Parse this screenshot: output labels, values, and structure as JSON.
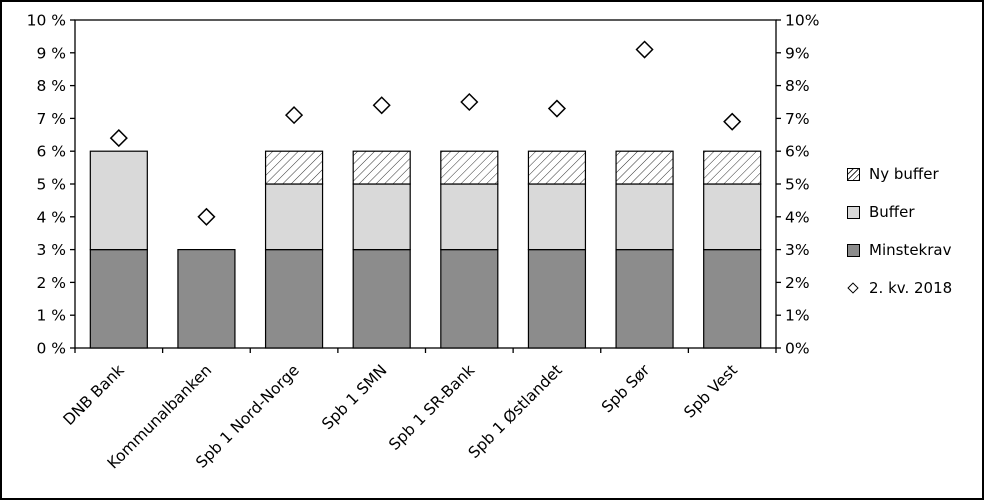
{
  "chart_data": {
    "type": "bar",
    "stacked": true,
    "title": "",
    "categories": [
      "DNB Bank",
      "Kommunalbanken",
      "Spb 1 Nord-Norge",
      "Spb 1 SMN",
      "Spb 1 SR-Bank",
      "Spb 1 Østlandet",
      "Spb Sør",
      "Spb Vest"
    ],
    "series": [
      {
        "name": "Minstekrav",
        "type": "bar",
        "values": [
          3,
          3,
          3,
          3,
          3,
          3,
          3,
          3
        ],
        "fill": "minstekrav"
      },
      {
        "name": "Buffer",
        "type": "bar",
        "values": [
          3,
          0,
          2,
          2,
          2,
          2,
          2,
          2
        ],
        "fill": "buffer"
      },
      {
        "name": "Ny buffer",
        "type": "bar",
        "values": [
          0,
          0,
          1,
          1,
          1,
          1,
          1,
          1
        ],
        "fill": "hatch"
      },
      {
        "name": "2. kv. 2018",
        "type": "scatter",
        "marker": "diamond",
        "values": [
          6.4,
          4.0,
          7.1,
          7.4,
          7.5,
          7.3,
          9.1,
          6.9
        ]
      }
    ],
    "ylim": [
      0,
      10
    ],
    "yaxis_left_ticks": [
      "0 %",
      "1 %",
      "2 %",
      "3 %",
      "4 %",
      "5 %",
      "6 %",
      "7 %",
      "8 %",
      "9 %",
      "10 %"
    ],
    "yaxis_right_ticks": [
      "0%",
      "1%",
      "2%",
      "3%",
      "4%",
      "5%",
      "6%",
      "7%",
      "8%",
      "9%",
      "10%"
    ],
    "legend": [
      "Ny buffer",
      "Buffer",
      "Minstekrav",
      "2. kv. 2018"
    ],
    "legend_position": "right",
    "grid": false
  },
  "colors": {
    "minstekrav": "#8c8c8c",
    "buffer": "#d9d9d9",
    "hatch_line": "#333333",
    "hatch_background": "#ffffff",
    "bar_border": "#000000",
    "axis": "#000000",
    "marker_fill": "#ffffff",
    "marker_stroke": "#000000",
    "background": "#ffffff"
  }
}
